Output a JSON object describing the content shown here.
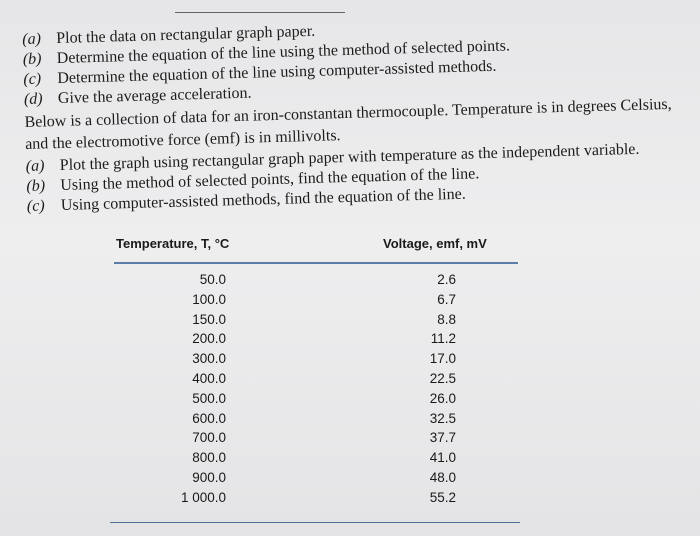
{
  "problem_1": {
    "items": [
      {
        "label": "(a)",
        "text": "Plot the data on rectangular graph paper."
      },
      {
        "label": "(b)",
        "text": "Determine the equation of the line using the method of selected points."
      },
      {
        "label": "(c)",
        "text": "Determine the equation of the line using computer-assisted methods."
      },
      {
        "label": "(d)",
        "text": "Give the average acceleration."
      }
    ]
  },
  "problem_2": {
    "intro": "Below is a collection of data for an iron-constantan thermocouple. Temperature is in degrees Celsius, and the electromotive force (emf) is in millivolts.",
    "items": [
      {
        "label": "(a)",
        "text": "Plot the graph using rectangular graph paper with temperature as the independent variable."
      },
      {
        "label": "(b)",
        "text": "Using the method of selected points, find the equation of the line."
      },
      {
        "label": "(c)",
        "text": "Using computer-assisted methods, find the equation of the line."
      }
    ]
  },
  "table": {
    "header": [
      "Temperature, T, °C",
      "Voltage, emf, mV"
    ],
    "rows": [
      [
        "50.0",
        "2.6"
      ],
      [
        "100.0",
        "6.7"
      ],
      [
        "150.0",
        "8.8"
      ],
      [
        "200.0",
        "11.2"
      ],
      [
        "300.0",
        "17.0"
      ],
      [
        "400.0",
        "22.5"
      ],
      [
        "500.0",
        "26.0"
      ],
      [
        "600.0",
        "32.5"
      ],
      [
        "700.0",
        "37.7"
      ],
      [
        "800.0",
        "41.0"
      ],
      [
        "900.0",
        "48.0"
      ],
      [
        "1 000.0",
        "55.2"
      ]
    ]
  }
}
